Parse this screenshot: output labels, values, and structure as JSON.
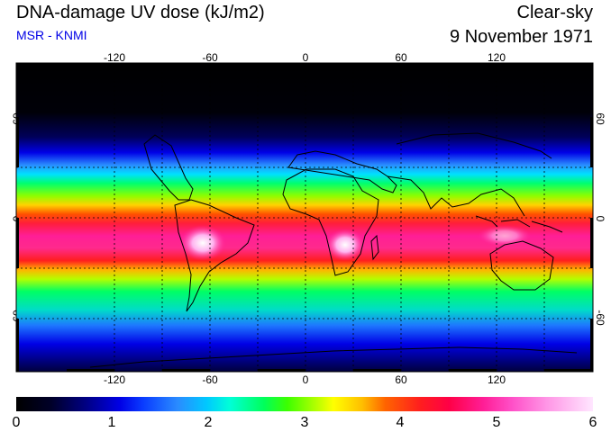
{
  "header": {
    "title": "DNA-damage UV dose (kJ/m2)",
    "subtitle": "MSR - KNMI",
    "sky_condition": "Clear-sky",
    "date": "9 November 1971"
  },
  "axes": {
    "longitude_ticks": [
      "-120",
      "-60",
      "0",
      "60",
      "120"
    ],
    "latitude_left": [
      "60",
      "0",
      "-60"
    ],
    "latitude_right": [
      "60",
      "0",
      "-60"
    ]
  },
  "colorbar": {
    "labels": [
      "0",
      "1",
      "2",
      "3",
      "4",
      "5",
      "6"
    ],
    "min": 0,
    "max": 6,
    "colors": {
      "low": "#000000",
      "mid": "#00ff5a",
      "high": "#ffe6ff"
    }
  }
}
